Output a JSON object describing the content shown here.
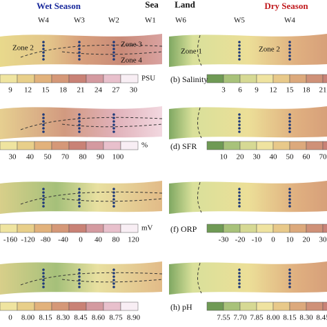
{
  "header": {
    "left_title": "Wet Season",
    "left_end": "Sea",
    "right_start": "Land",
    "right_title": "Dry Season",
    "left_wells": [
      "W4",
      "W3",
      "W2",
      "W1"
    ],
    "right_wells": [
      "W6",
      "W5",
      "W4"
    ]
  },
  "zones": {
    "left": [
      "Zone 2",
      "Zone 3",
      "Zone 4"
    ],
    "right": [
      "Zone 1",
      "Zone 2"
    ]
  },
  "panels": [
    {
      "left_unit": "PSU",
      "left_ticks": [
        "9",
        "12",
        "15",
        "18",
        "21",
        "24",
        "27",
        "30"
      ],
      "right_label": "(b) Salinity",
      "right_ticks": [
        "3",
        "6",
        "9",
        "12",
        "15",
        "18",
        "21"
      ]
    },
    {
      "left_unit": "%",
      "left_ticks": [
        "30",
        "40",
        "50",
        "70",
        "80",
        "90",
        "100"
      ],
      "right_label": "(d) SFR",
      "right_ticks": [
        "10",
        "20",
        "30",
        "40",
        "50",
        "60",
        "70"
      ]
    },
    {
      "left_unit": "mV",
      "left_ticks": [
        "-160",
        "-120",
        "-80",
        "-40",
        "0",
        "40",
        "80",
        "120"
      ],
      "right_label": "(f) ORP",
      "right_ticks": [
        "-30",
        "-20",
        "-10",
        "0",
        "10",
        "20",
        "30"
      ]
    },
    {
      "left_unit": "",
      "left_ticks": [
        "0",
        "8.00",
        "8.15",
        "8.30",
        "8.45",
        "8.60",
        "8.75",
        "8.90"
      ],
      "right_label": "(h) pH",
      "right_ticks": [
        "7.55",
        "7.70",
        "7.85",
        "8.00",
        "8.15",
        "8.30",
        "8.45"
      ]
    }
  ]
}
